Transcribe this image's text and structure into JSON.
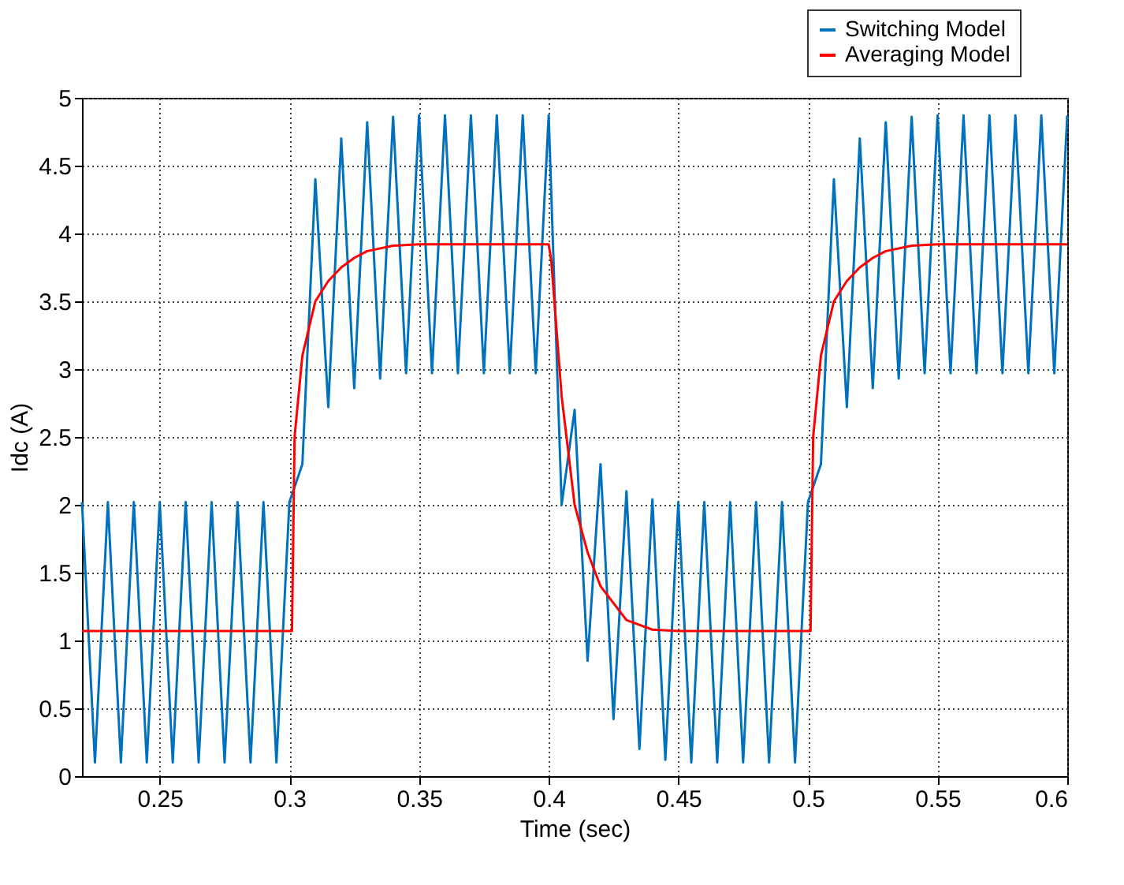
{
  "chart_data": {
    "type": "line",
    "xlabel": "Time (sec)",
    "ylabel": "Idc (A)",
    "xlim": [
      0.22,
      0.6
    ],
    "xticks": [
      0.25,
      0.3,
      0.35,
      0.4,
      0.45,
      0.5,
      0.55,
      0.6
    ],
    "ylim": [
      0,
      5
    ],
    "yticks": [
      0,
      0.5,
      1,
      1.5,
      2,
      2.5,
      3,
      3.5,
      4,
      4.5,
      5
    ],
    "grid": true,
    "legend": "top right",
    "line_style": "solid",
    "marker": "none",
    "series": [
      {
        "name": "Switching Model",
        "color": "#0072bd",
        "x": [
          0.22,
          0.225,
          0.23,
          0.235,
          0.24,
          0.245,
          0.25,
          0.255,
          0.26,
          0.265,
          0.27,
          0.275,
          0.28,
          0.285,
          0.29,
          0.295,
          0.3,
          0.305,
          0.31,
          0.315,
          0.32,
          0.325,
          0.33,
          0.335,
          0.34,
          0.345,
          0.35,
          0.355,
          0.36,
          0.365,
          0.37,
          0.375,
          0.38,
          0.385,
          0.39,
          0.395,
          0.4,
          0.405,
          0.41,
          0.415,
          0.42,
          0.425,
          0.43,
          0.435,
          0.44,
          0.445,
          0.45,
          0.455,
          0.46,
          0.465,
          0.47,
          0.475,
          0.48,
          0.485,
          0.49,
          0.495,
          0.5,
          0.505,
          0.51,
          0.515,
          0.52,
          0.525,
          0.53,
          0.535,
          0.54,
          0.545,
          0.55,
          0.555,
          0.56,
          0.565,
          0.57,
          0.575,
          0.58,
          0.585,
          0.59,
          0.595,
          0.6
        ],
        "values": [
          2.02,
          0.1,
          2.02,
          0.1,
          2.02,
          0.1,
          2.02,
          0.1,
          2.02,
          0.1,
          2.02,
          0.1,
          2.02,
          0.1,
          2.02,
          0.1,
          2.02,
          2.3,
          4.4,
          2.72,
          4.7,
          2.86,
          4.82,
          2.93,
          4.86,
          2.97,
          4.87,
          2.97,
          4.87,
          2.97,
          4.87,
          2.97,
          4.87,
          2.97,
          4.87,
          2.97,
          4.87,
          2.0,
          2.7,
          0.85,
          2.3,
          0.42,
          2.1,
          0.2,
          2.04,
          0.12,
          2.02,
          0.1,
          2.02,
          0.1,
          2.02,
          0.1,
          2.02,
          0.1,
          2.02,
          0.1,
          2.02,
          2.3,
          4.4,
          2.72,
          4.7,
          2.86,
          4.82,
          2.93,
          4.86,
          2.97,
          4.87,
          2.97,
          4.87,
          2.97,
          4.87,
          2.97,
          4.87,
          2.97,
          4.87,
          2.97,
          4.87
        ]
      },
      {
        "name": "Averaging Model",
        "color": "#ff0000",
        "x": [
          0.22,
          0.301,
          0.302,
          0.305,
          0.31,
          0.315,
          0.32,
          0.325,
          0.33,
          0.34,
          0.35,
          0.4,
          0.401,
          0.405,
          0.41,
          0.415,
          0.42,
          0.43,
          0.44,
          0.45,
          0.5,
          0.501,
          0.502,
          0.505,
          0.51,
          0.515,
          0.52,
          0.525,
          0.53,
          0.54,
          0.55,
          0.6
        ],
        "values": [
          1.07,
          1.07,
          2.5,
          3.1,
          3.5,
          3.65,
          3.75,
          3.82,
          3.87,
          3.91,
          3.92,
          3.92,
          3.8,
          2.8,
          2.0,
          1.65,
          1.4,
          1.15,
          1.08,
          1.07,
          1.07,
          1.07,
          2.5,
          3.1,
          3.5,
          3.65,
          3.75,
          3.82,
          3.87,
          3.91,
          3.92,
          3.92
        ]
      }
    ]
  }
}
